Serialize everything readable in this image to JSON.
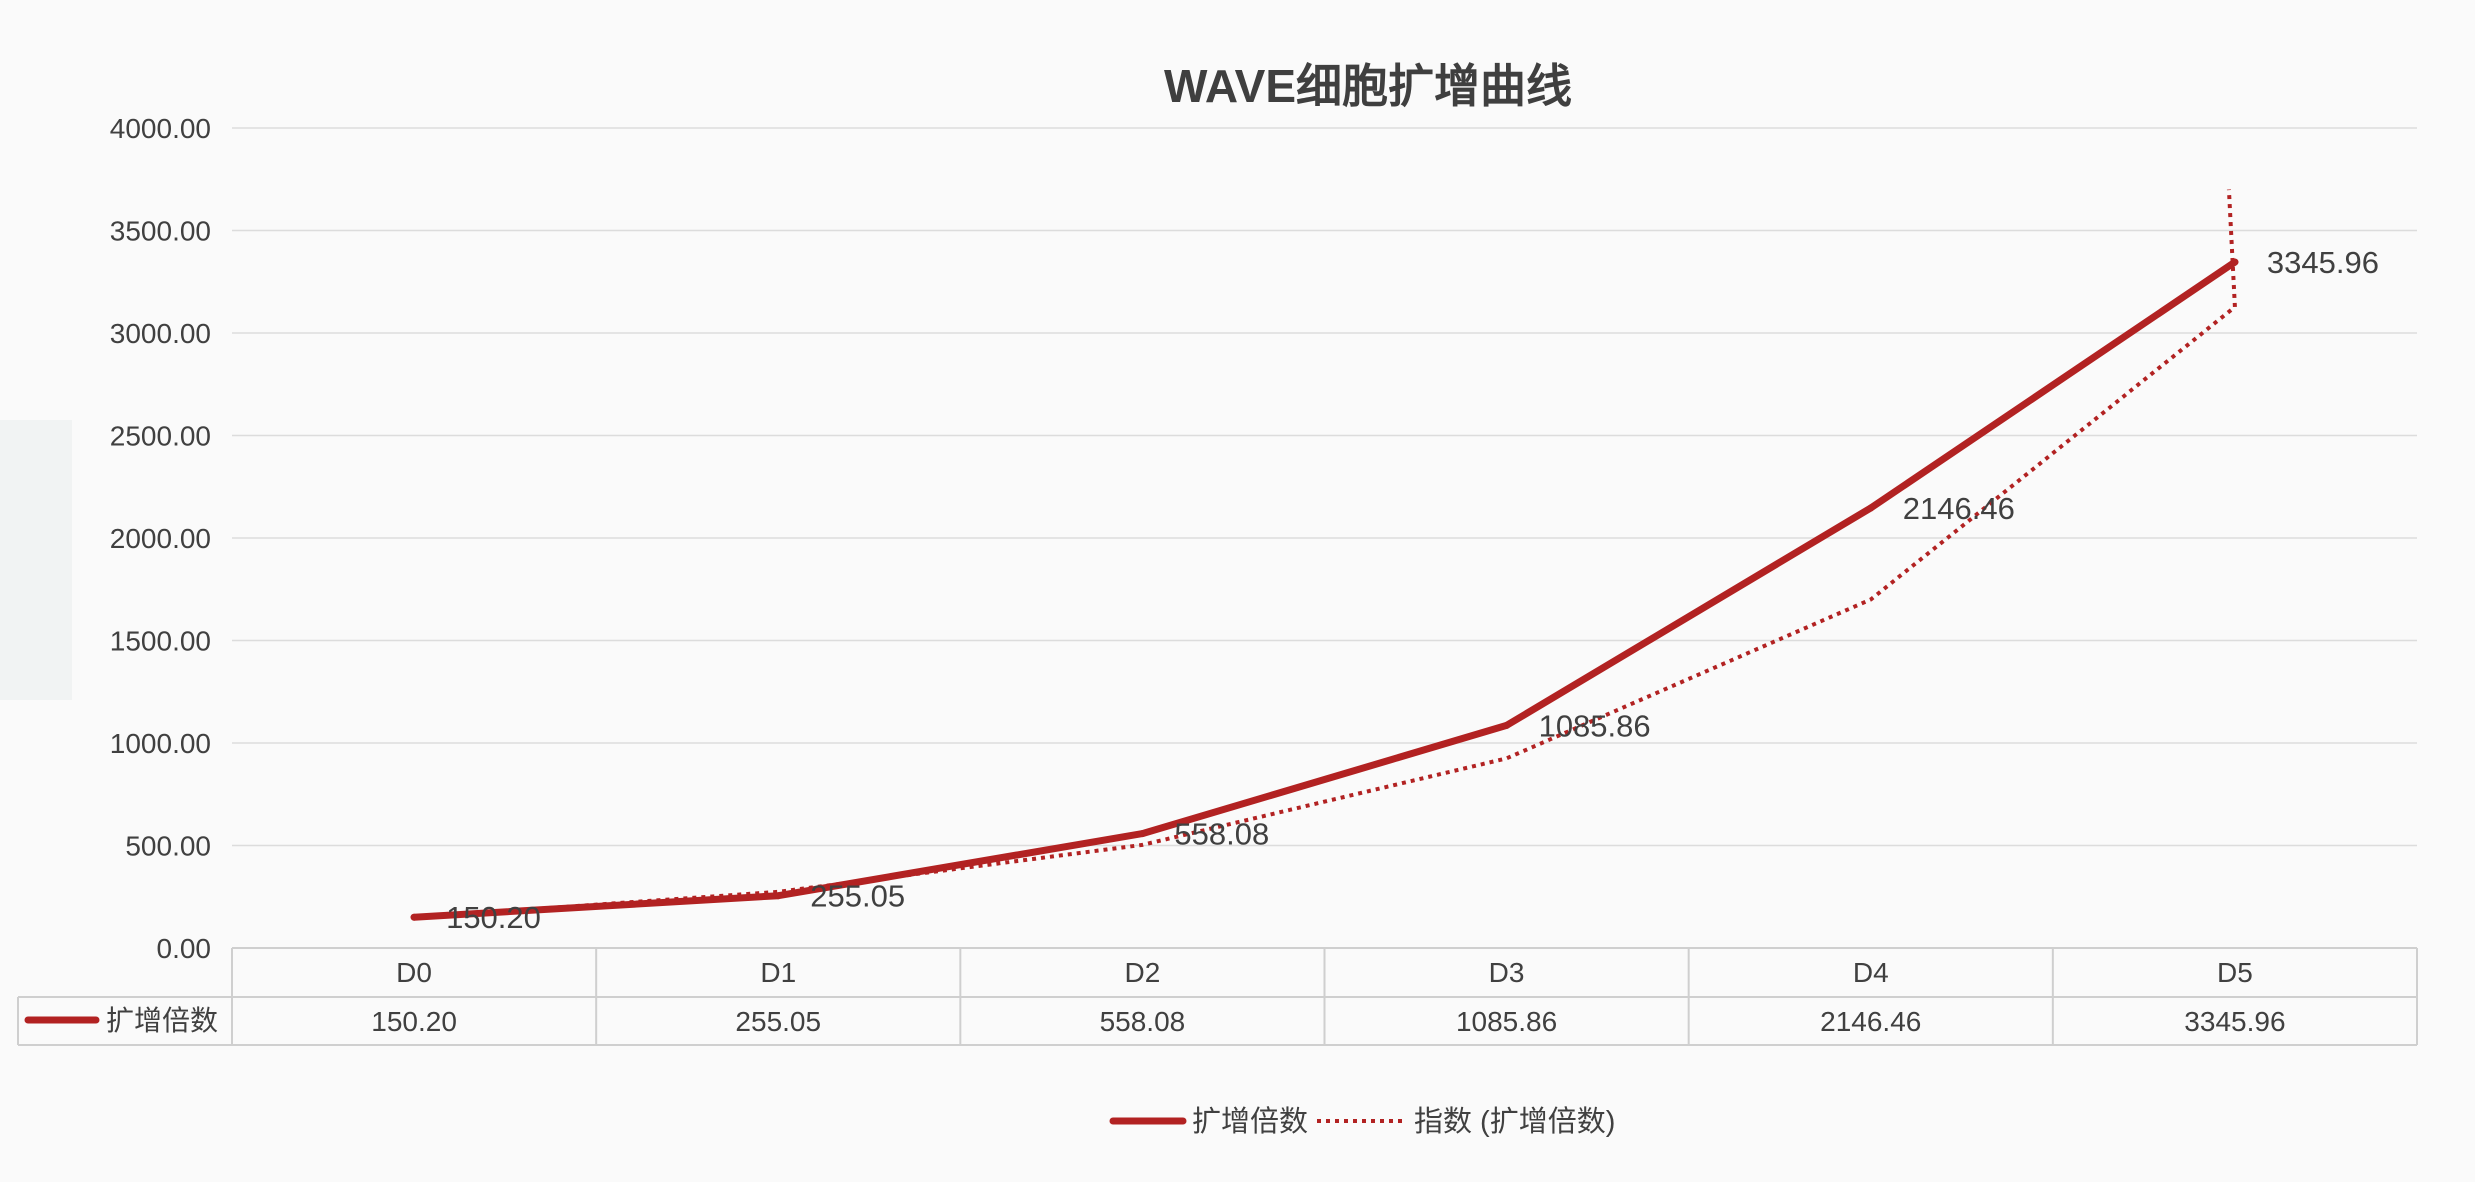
{
  "chart_data": {
    "type": "line",
    "title": "WAVE细胞扩增曲线",
    "categories": [
      "D0",
      "D1",
      "D2",
      "D3",
      "D4",
      "D5"
    ],
    "series": [
      {
        "name": "扩增倍数",
        "values": [
          150.2,
          255.05,
          558.08,
          1085.86,
          2146.46,
          3345.96
        ],
        "value_labels": [
          "150.20",
          "255.05",
          "558.08",
          "1085.86",
          "2146.46",
          "3345.96"
        ],
        "color": "#b22222",
        "style": "solid"
      },
      {
        "name": "指数 (扩增倍数)",
        "type": "trendline-exponential",
        "values": [
          149,
          274,
          503,
          925,
          1700,
          3127
        ],
        "end_value": 3700,
        "color": "#b22222",
        "style": "dotted"
      }
    ],
    "y_tick_labels": [
      "0.00",
      "500.00",
      "1000.00",
      "1500.00",
      "2000.00",
      "2500.00",
      "3000.00",
      "3500.00",
      "4000.00"
    ],
    "ylim": [
      0,
      4000
    ],
    "grid": true,
    "legend_position": "bottom",
    "data_table": {
      "series_label": "扩增倍数",
      "cells": [
        "150.20",
        "255.05",
        "558.08",
        "1085.86",
        "2146.46",
        "3345.96"
      ]
    }
  }
}
